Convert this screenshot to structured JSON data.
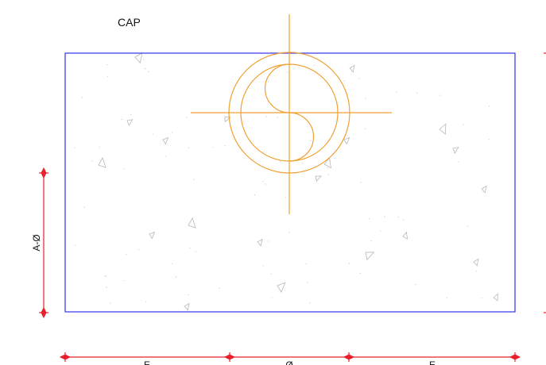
{
  "title": "CAP",
  "dimensions": {
    "height_label": "A-Ø",
    "bottom_labels": [
      "E",
      "Ø",
      "E"
    ]
  },
  "colors": {
    "outline": "#3333ee",
    "symbol": "#f0a030",
    "dimension": "#e8202a",
    "hatch": "#b8b8b8",
    "text": "#111111"
  }
}
